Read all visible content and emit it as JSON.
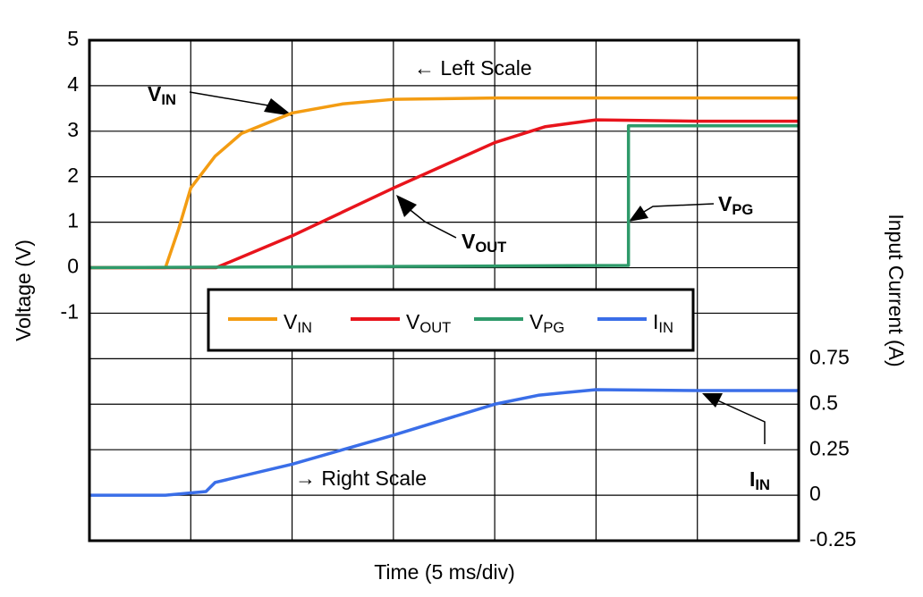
{
  "chart_data": {
    "type": "line",
    "x_label": "Time (5 ms/div)",
    "y_label": "Voltage (V)",
    "y2_label": "Input Current (A)",
    "xlim": [
      0,
      35
    ],
    "xticks": [
      0,
      5,
      10,
      15,
      20,
      25,
      30,
      35
    ],
    "ylim": [
      -6,
      5
    ],
    "yticks": [
      5,
      4,
      3,
      2,
      1,
      0,
      -1
    ],
    "y2lim": [
      -0.25,
      2.5
    ],
    "y2ticks": [
      0.75,
      0.5,
      0.25,
      0,
      -0.25
    ],
    "grid": true,
    "annotations": [
      "← Left Scale",
      "→ Right Scale"
    ],
    "series": [
      {
        "name": "VIN",
        "color": "#f39c12",
        "x": [
          0,
          3.75,
          4.4,
          5,
          6.2,
          7.5,
          10,
          12.5,
          15,
          20,
          25,
          30,
          35
        ],
        "values": [
          0,
          0,
          0.85,
          1.75,
          2.45,
          2.95,
          3.4,
          3.6,
          3.7,
          3.73,
          3.73,
          3.73,
          3.73
        ]
      },
      {
        "name": "VOUT",
        "color": "#e8141c",
        "x": [
          0,
          6.25,
          10,
          15,
          17.5,
          20,
          22.5,
          25,
          30,
          35
        ],
        "values": [
          0,
          0,
          0.7,
          1.75,
          2.25,
          2.75,
          3.1,
          3.25,
          3.22,
          3.22
        ]
      },
      {
        "name": "VPG",
        "color": "#2e9a6a",
        "x": [
          0,
          26.6,
          26.6,
          35
        ],
        "values": [
          0,
          0.05,
          3.12,
          3.12
        ]
      },
      {
        "name": "IIN",
        "color": "#3a6ee8",
        "axis": "y2",
        "x": [
          0,
          3.75,
          5.75,
          6.2,
          10,
          15,
          20,
          22.2,
          25,
          30,
          35
        ],
        "values": [
          0,
          0,
          0.02,
          0.07,
          0.17,
          0.33,
          0.5,
          0.55,
          0.58,
          0.575,
          0.575
        ]
      }
    ]
  }
}
